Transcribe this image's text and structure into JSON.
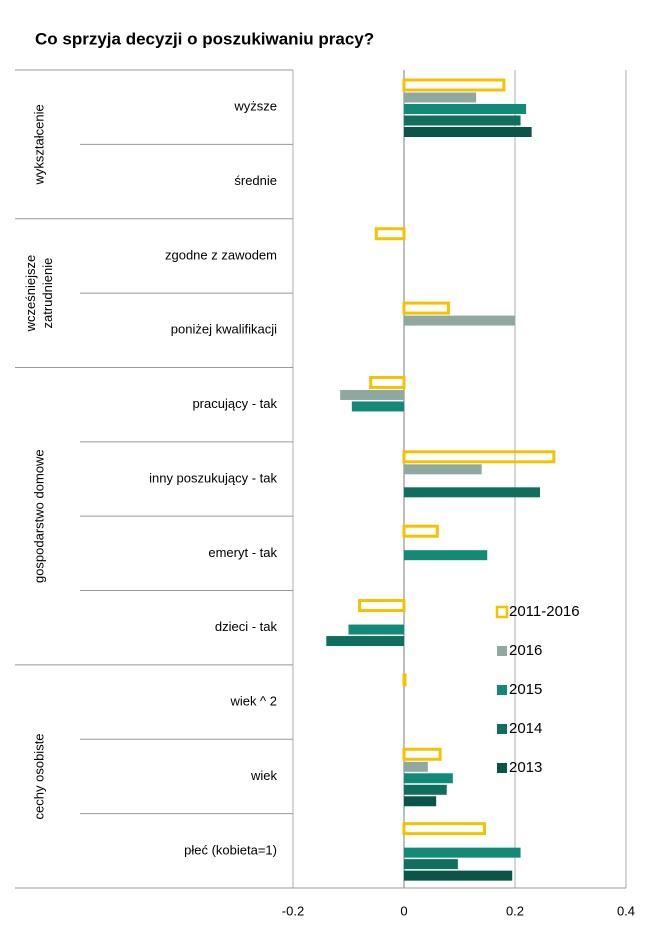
{
  "chart_data": {
    "type": "bar",
    "orientation": "horizontal",
    "title": "Co sprzyja decyzji o poszukiwaniu pracy?",
    "categories": [
      "wyższe",
      "średnie",
      "zgodne z zawodem",
      "poniżej kwalifikacji",
      "pracujący - tak",
      "inny poszukujący - tak",
      "emeryt - tak",
      "dzieci - tak",
      "wiek ^ 2",
      "wiek",
      "płeć (kobieta=1)"
    ],
    "groups": [
      {
        "lines": [
          "wykształcenie"
        ],
        "from": 0,
        "to": 1
      },
      {
        "lines": [
          "wcześniejsze",
          "zatrudnienie"
        ],
        "from": 2,
        "to": 3
      },
      {
        "lines": [
          "gospodarstwo domowe"
        ],
        "from": 4,
        "to": 7
      },
      {
        "lines": [
          "cechy osobiste"
        ],
        "from": 8,
        "to": 10
      }
    ],
    "series": [
      {
        "name": "2011-2016",
        "color": "#f5c200",
        "outline": true,
        "values": [
          0.18,
          null,
          -0.05,
          0.08,
          -0.06,
          0.27,
          0.06,
          -0.08,
          0,
          0.065,
          0.145
        ]
      },
      {
        "name": "2016",
        "color": "#8fa8a0",
        "values": [
          0.13,
          null,
          null,
          0.2,
          -0.115,
          0.14,
          null,
          null,
          null,
          0.043,
          null
        ]
      },
      {
        "name": "2015",
        "color": "#138a78",
        "values": [
          0.22,
          null,
          null,
          null,
          -0.094,
          null,
          0.15,
          -0.1,
          null,
          0.088,
          0.21
        ]
      },
      {
        "name": "2014",
        "color": "#0f6e5e",
        "values": [
          0.21,
          null,
          null,
          null,
          null,
          0.245,
          null,
          -0.14,
          null,
          0.077,
          0.097
        ]
      },
      {
        "name": "2013",
        "color": "#0b5548",
        "values": [
          0.23,
          null,
          null,
          null,
          null,
          null,
          null,
          null,
          null,
          0.058,
          0.195
        ]
      }
    ],
    "xlim": [
      -0.2,
      0.4
    ],
    "xticks": [
      -0.2,
      0,
      0.2,
      0.4
    ],
    "grid": true,
    "legend": "lower right"
  }
}
